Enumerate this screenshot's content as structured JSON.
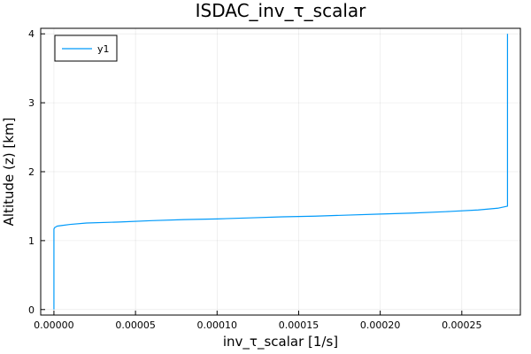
{
  "chart_data": {
    "type": "line",
    "title": "ISDAC_inv_τ_scalar",
    "xlabel": "inv_τ_scalar [1/s]",
    "ylabel": "Altitude (z) [km]",
    "xlim": [
      -8.1e-06,
      0.0002859
    ],
    "ylim": [
      -0.08,
      4.08
    ],
    "x_ticks": [
      0,
      5e-05,
      0.0001,
      0.00015,
      0.0002,
      0.00025
    ],
    "x_tick_labels": [
      "0.00000",
      "0.00005",
      "0.00010",
      "0.00015",
      "0.00020",
      "0.00025"
    ],
    "y_ticks": [
      0,
      1,
      2,
      3,
      4
    ],
    "y_tick_labels": [
      "0",
      "1",
      "2",
      "3",
      "4"
    ],
    "grid": true,
    "legend_position": "top-left",
    "series": [
      {
        "name": "y1",
        "color": "#009AFA",
        "x": [
          0,
          0,
          5e-07,
          2e-06,
          5e-06,
          1e-05,
          2e-05,
          4e-05,
          6e-05,
          8e-05,
          0.0001,
          0.00012,
          0.00014,
          0.00016,
          0.00018,
          0.0002,
          0.00022,
          0.00024,
          0.00026,
          0.000272,
          0.000278,
          0.000278,
          0.000278
        ],
        "y": [
          0,
          1.17,
          1.19,
          1.21,
          1.22,
          1.235,
          1.255,
          1.27,
          1.29,
          1.305,
          1.315,
          1.33,
          1.345,
          1.355,
          1.37,
          1.385,
          1.4,
          1.42,
          1.445,
          1.47,
          1.5,
          2.5,
          4.0
        ]
      }
    ]
  }
}
